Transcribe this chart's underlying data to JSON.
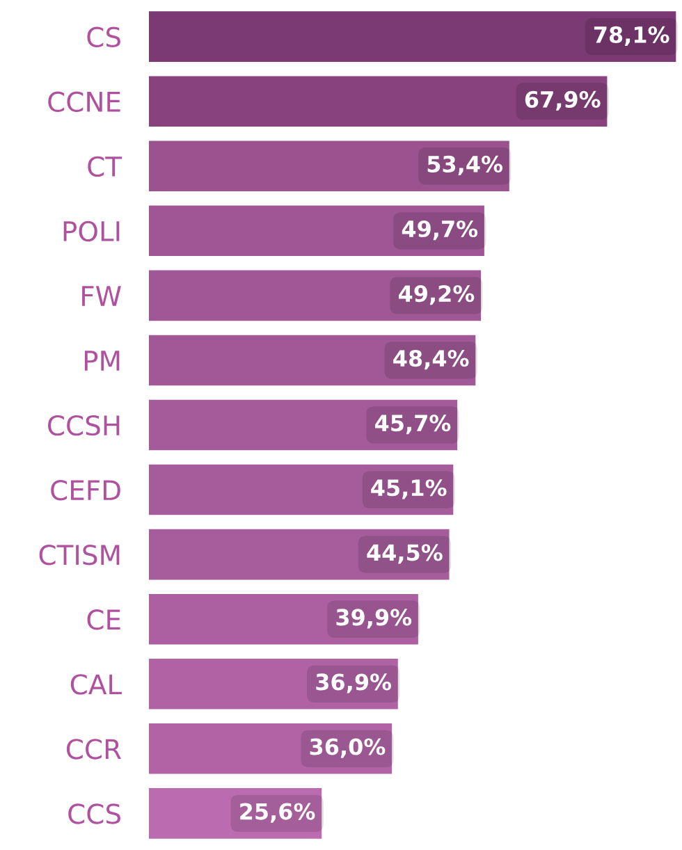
{
  "chart_data": {
    "type": "bar",
    "orientation": "horizontal",
    "categories": [
      "CS",
      "CCNE",
      "CT",
      "POLI",
      "FW",
      "PM",
      "CCSH",
      "CEFD",
      "CTISM",
      "CE",
      "CAL",
      "CCR",
      "CCS"
    ],
    "values": [
      78.1,
      67.9,
      53.4,
      49.7,
      49.2,
      48.4,
      45.7,
      45.1,
      44.5,
      39.9,
      36.9,
      36.0,
      25.6
    ],
    "value_labels": [
      "78,1%",
      "67,9%",
      "53,4%",
      "49,7%",
      "49,2%",
      "48,4%",
      "45,7%",
      "45,1%",
      "44,5%",
      "39,9%",
      "36,9%",
      "36,0%",
      "25,6%"
    ],
    "colors": [
      "#7b3a73",
      "#88437f",
      "#9a538f",
      "#9e5694",
      "#9f5795",
      "#a05896",
      "#a45b9a",
      "#a55c9b",
      "#a65d9c",
      "#ac60a2",
      "#b062a5",
      "#b163a6",
      "#bb6cb0"
    ]
  }
}
